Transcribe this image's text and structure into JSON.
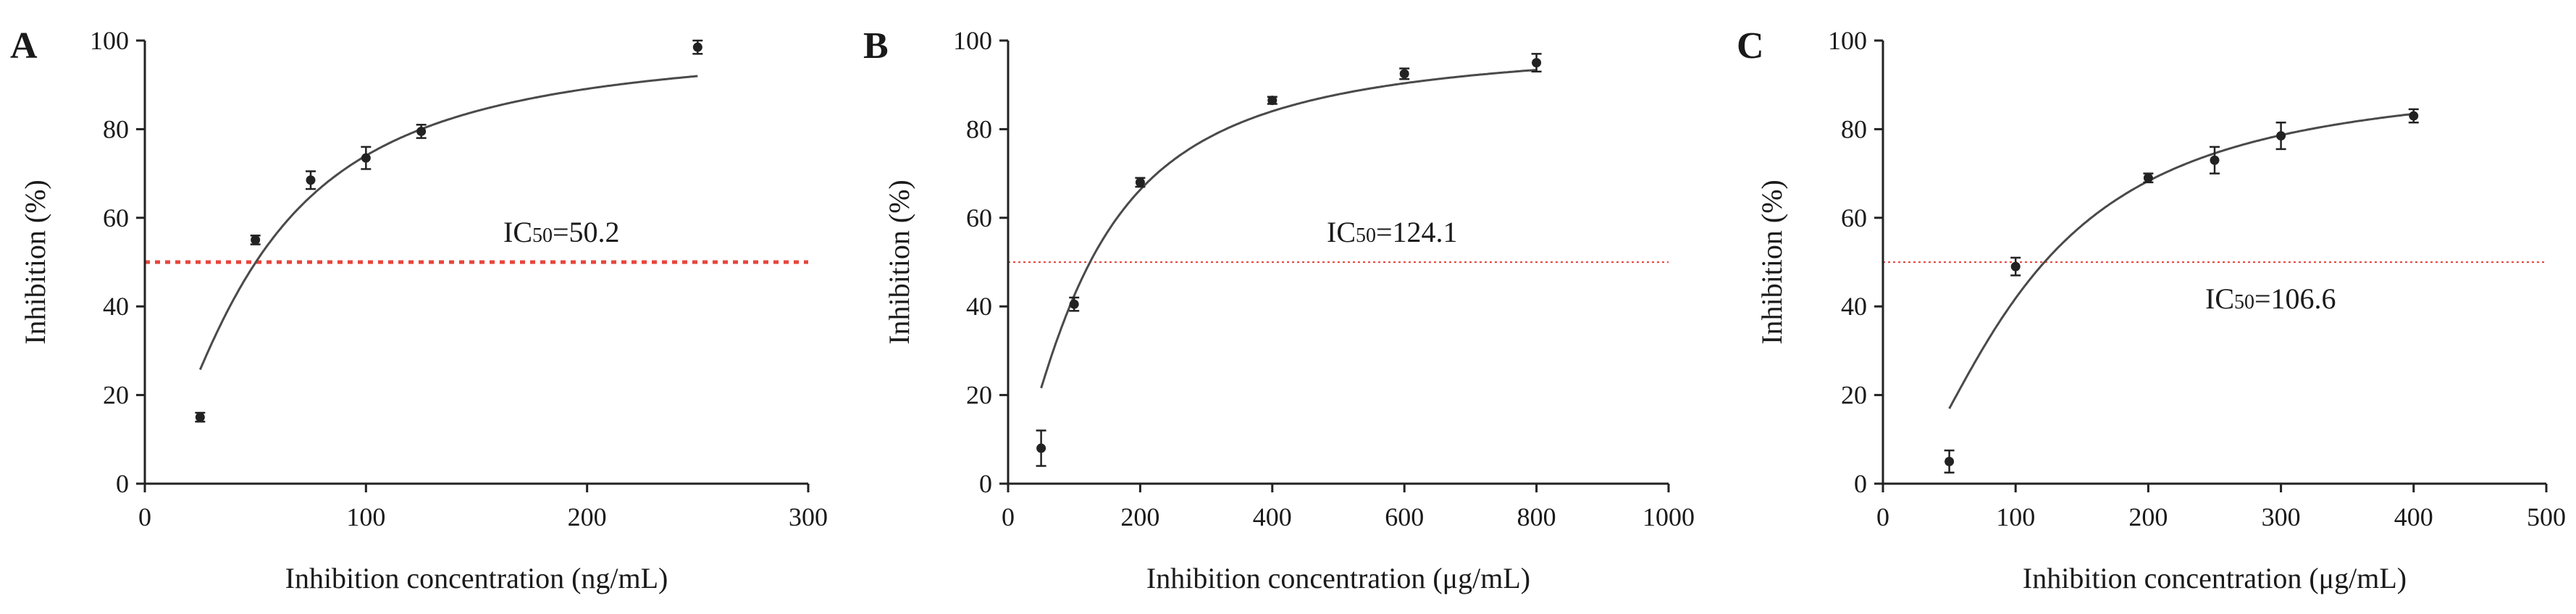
{
  "chart_data": [
    {
      "panel": "A",
      "type": "scatter",
      "xlabel": "Inhibition concentration (ng/mL)",
      "ylabel": "Inhibition (%)",
      "xlim": [
        0,
        300
      ],
      "ylim": [
        0,
        100
      ],
      "xticks": [
        0,
        100,
        200,
        300
      ],
      "yticks": [
        0,
        20,
        40,
        60,
        80,
        100
      ],
      "points": [
        {
          "x": 25,
          "y": 15,
          "err": 1.0
        },
        {
          "x": 50,
          "y": 55,
          "err": 1.0
        },
        {
          "x": 75,
          "y": 68.5,
          "err": 2.0
        },
        {
          "x": 100,
          "y": 73.5,
          "err": 2.5
        },
        {
          "x": 125,
          "y": 79.5,
          "err": 1.5
        },
        {
          "x": 250,
          "y": 98.5,
          "err": 1.5
        }
      ],
      "fit": {
        "ic50": 50.2,
        "hill": 1.52,
        "x_range": [
          25,
          250
        ]
      },
      "ic50_label": {
        "prefix": "IC",
        "sub": "50",
        "value": "=50.2"
      },
      "threshold": {
        "y": 50,
        "color": "#e8453c",
        "style": "dotted-bold"
      }
    },
    {
      "panel": "B",
      "type": "scatter",
      "xlabel": "Inhibition concentration (μg/mL)",
      "ylabel": "Inhibition (%)",
      "xlim": [
        0,
        1000
      ],
      "ylim": [
        0,
        100
      ],
      "xticks": [
        0,
        200,
        400,
        600,
        800,
        1000
      ],
      "yticks": [
        0,
        20,
        40,
        60,
        80,
        100
      ],
      "points": [
        {
          "x": 50,
          "y": 8,
          "err": 4.0
        },
        {
          "x": 100,
          "y": 40.5,
          "err": 1.5
        },
        {
          "x": 200,
          "y": 68,
          "err": 1.0
        },
        {
          "x": 400,
          "y": 86.5,
          "err": 0.8
        },
        {
          "x": 600,
          "y": 92.5,
          "err": 1.2
        },
        {
          "x": 800,
          "y": 95,
          "err": 2.0
        }
      ],
      "fit": {
        "ic50": 124.1,
        "hill": 1.42,
        "x_range": [
          50,
          800
        ]
      },
      "ic50_label": {
        "prefix": "IC",
        "sub": "50",
        "value": "=124.1"
      },
      "threshold": {
        "y": 50,
        "color": "#e8453c",
        "style": "dotted-thin"
      }
    },
    {
      "panel": "C",
      "type": "scatter",
      "xlabel": "Inhibition concentration (μg/mL)",
      "ylabel": "Inhibition (%)",
      "xlim": [
        0,
        500
      ],
      "ylim": [
        0,
        100
      ],
      "xticks": [
        0,
        100,
        200,
        300,
        400,
        500
      ],
      "yticks": [
        0,
        20,
        40,
        60,
        80,
        100
      ],
      "points": [
        {
          "x": 50,
          "y": 5,
          "err": 2.5
        },
        {
          "x": 100,
          "y": 49,
          "err": 2.0
        },
        {
          "x": 200,
          "y": 69,
          "err": 1.0
        },
        {
          "x": 250,
          "y": 73,
          "err": 3.0
        },
        {
          "x": 300,
          "y": 78.5,
          "err": 3.0
        },
        {
          "x": 400,
          "y": 83,
          "err": 1.5
        }
      ],
      "fit": {
        "ic50": 106.6,
        "hill": 1.75,
        "x_range": [
          50,
          400
        ],
        "ymax": 92,
        "ymin": -3
      },
      "ic50_label": {
        "prefix": "IC",
        "sub": "50",
        "value": "=106.6"
      },
      "threshold": {
        "y": 50,
        "color": "#e8453c",
        "style": "dotted-thin"
      }
    }
  ]
}
